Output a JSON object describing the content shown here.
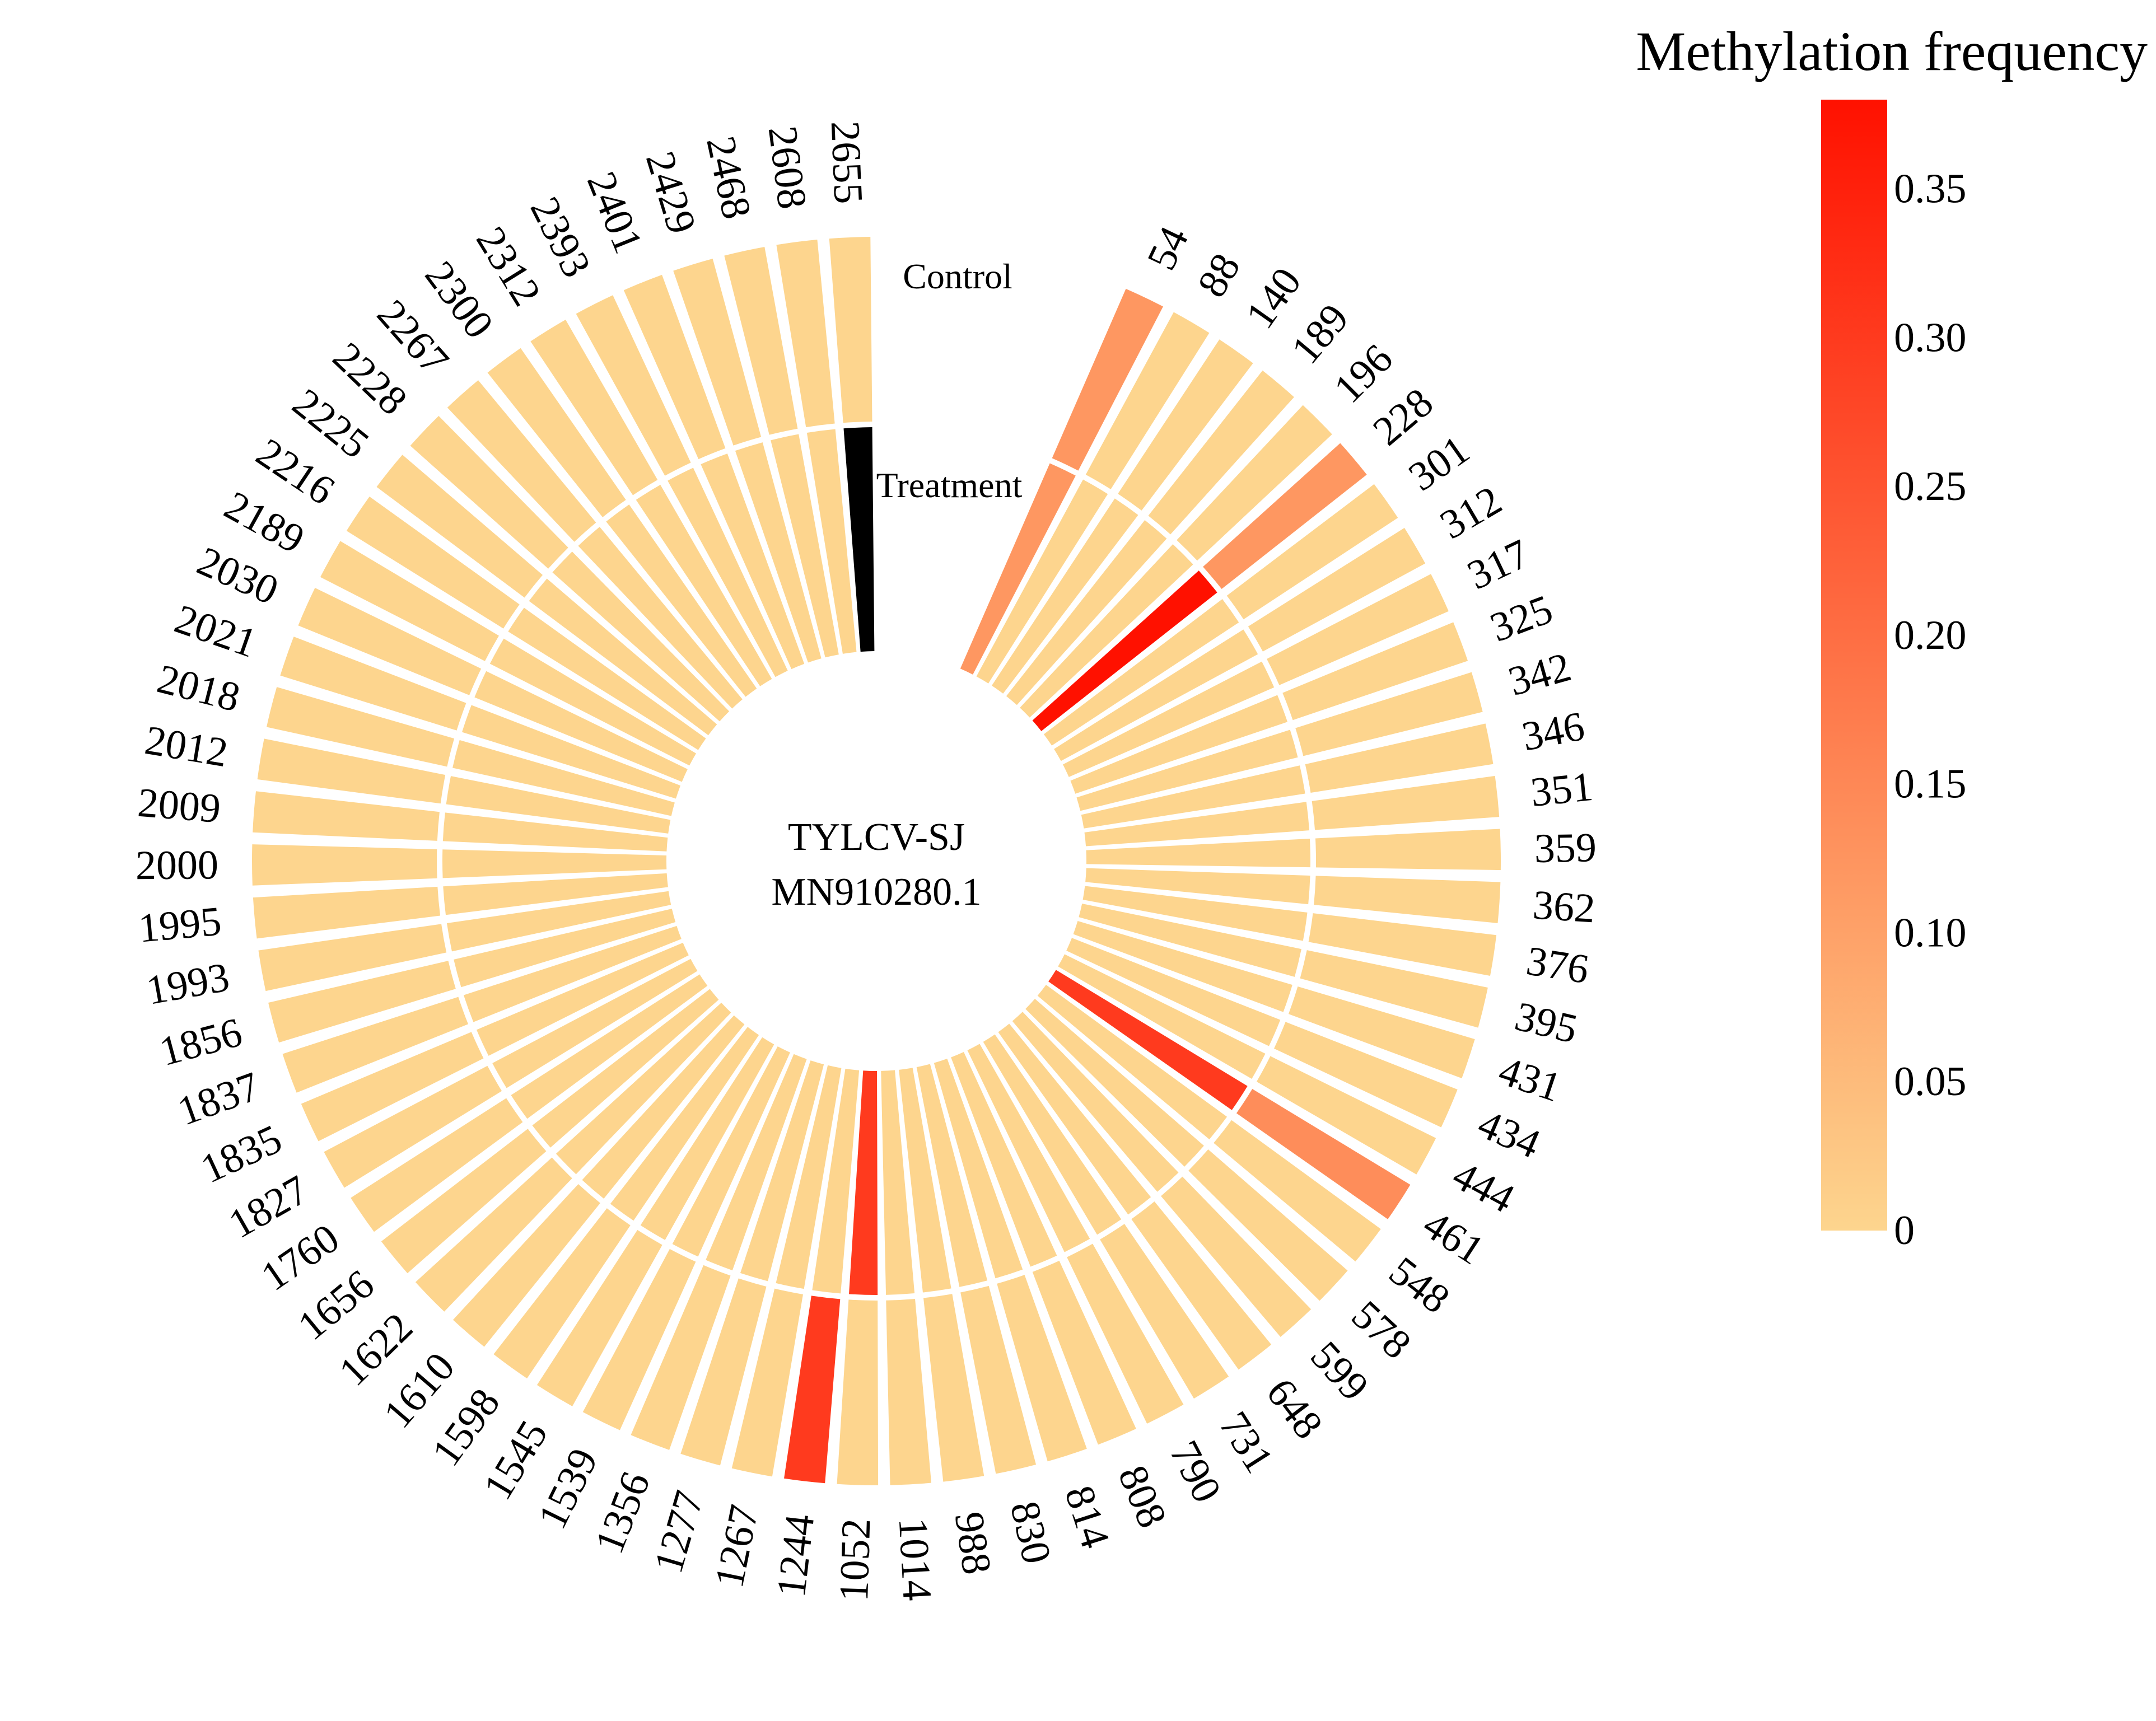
{
  "chart_data": {
    "type": "circular_heatmap",
    "center_label_lines": [
      "TYLCV-SJ",
      "MN910280.1"
    ],
    "ring_labels": {
      "outer": "Control",
      "inner": "Treatment"
    },
    "sites": [
      "54",
      "88",
      "140",
      "189",
      "196",
      "228",
      "301",
      "312",
      "317",
      "325",
      "342",
      "346",
      "351",
      "359",
      "362",
      "376",
      "395",
      "431",
      "434",
      "444",
      "461",
      "548",
      "578",
      "599",
      "648",
      "731",
      "790",
      "808",
      "814",
      "830",
      "988",
      "1014",
      "1052",
      "1244",
      "1267",
      "1277",
      "1356",
      "1539",
      "1545",
      "1598",
      "1610",
      "1622",
      "1656",
      "1760",
      "1827",
      "1835",
      "1837",
      "1856",
      "1993",
      "1995",
      "2000",
      "2009",
      "2012",
      "2018",
      "2021",
      "2030",
      "2189",
      "2216",
      "2225",
      "2228",
      "2267",
      "2300",
      "2312",
      "2393",
      "2401",
      "2429",
      "2468",
      "2608",
      "2655"
    ],
    "series": [
      {
        "name": "Control",
        "values": [
          0.12,
          0,
          0,
          0,
          0,
          0.12,
          0,
          0,
          0,
          0,
          0,
          0,
          0,
          0,
          0,
          0,
          0,
          0,
          0,
          0,
          0.14,
          0,
          0,
          0,
          0,
          0,
          0,
          0,
          0,
          0,
          0,
          0,
          0,
          0.3,
          0,
          0,
          0,
          0,
          0,
          0,
          0,
          0,
          0,
          0,
          0,
          0,
          0,
          0,
          0,
          0,
          0,
          0,
          0,
          0,
          0,
          0,
          0,
          0,
          0,
          0,
          0,
          0,
          0,
          0,
          0,
          0,
          0,
          0,
          0
        ]
      },
      {
        "name": "Treatment",
        "values": [
          0.12,
          0,
          0,
          0,
          0,
          0.38,
          0,
          0,
          0,
          0,
          0,
          0,
          0,
          0,
          0,
          0,
          0,
          0,
          0,
          0,
          0.3,
          0,
          0,
          0,
          0,
          0,
          0,
          0,
          0,
          0,
          0,
          0,
          0.3,
          0,
          0,
          0,
          0,
          0,
          0,
          0,
          0,
          0,
          0,
          0,
          0,
          0,
          0,
          0,
          0,
          0,
          0,
          0,
          0,
          0,
          0,
          0,
          0,
          0,
          0,
          0,
          0,
          0,
          0,
          0,
          0,
          0,
          0,
          0
        ]
      }
    ],
    "colorbar": {
      "title": "Methylation frequency",
      "min": 0,
      "max": 0.38,
      "ticks": [
        "0",
        "0.05",
        "0.10",
        "0.15",
        "0.20",
        "0.25",
        "0.30",
        "0.35"
      ],
      "tick_values": [
        0,
        0.05,
        0.1,
        0.15,
        0.2,
        0.25,
        0.3,
        0.35
      ],
      "color_low": "#FDD58E",
      "color_high": "#FF1100"
    }
  }
}
